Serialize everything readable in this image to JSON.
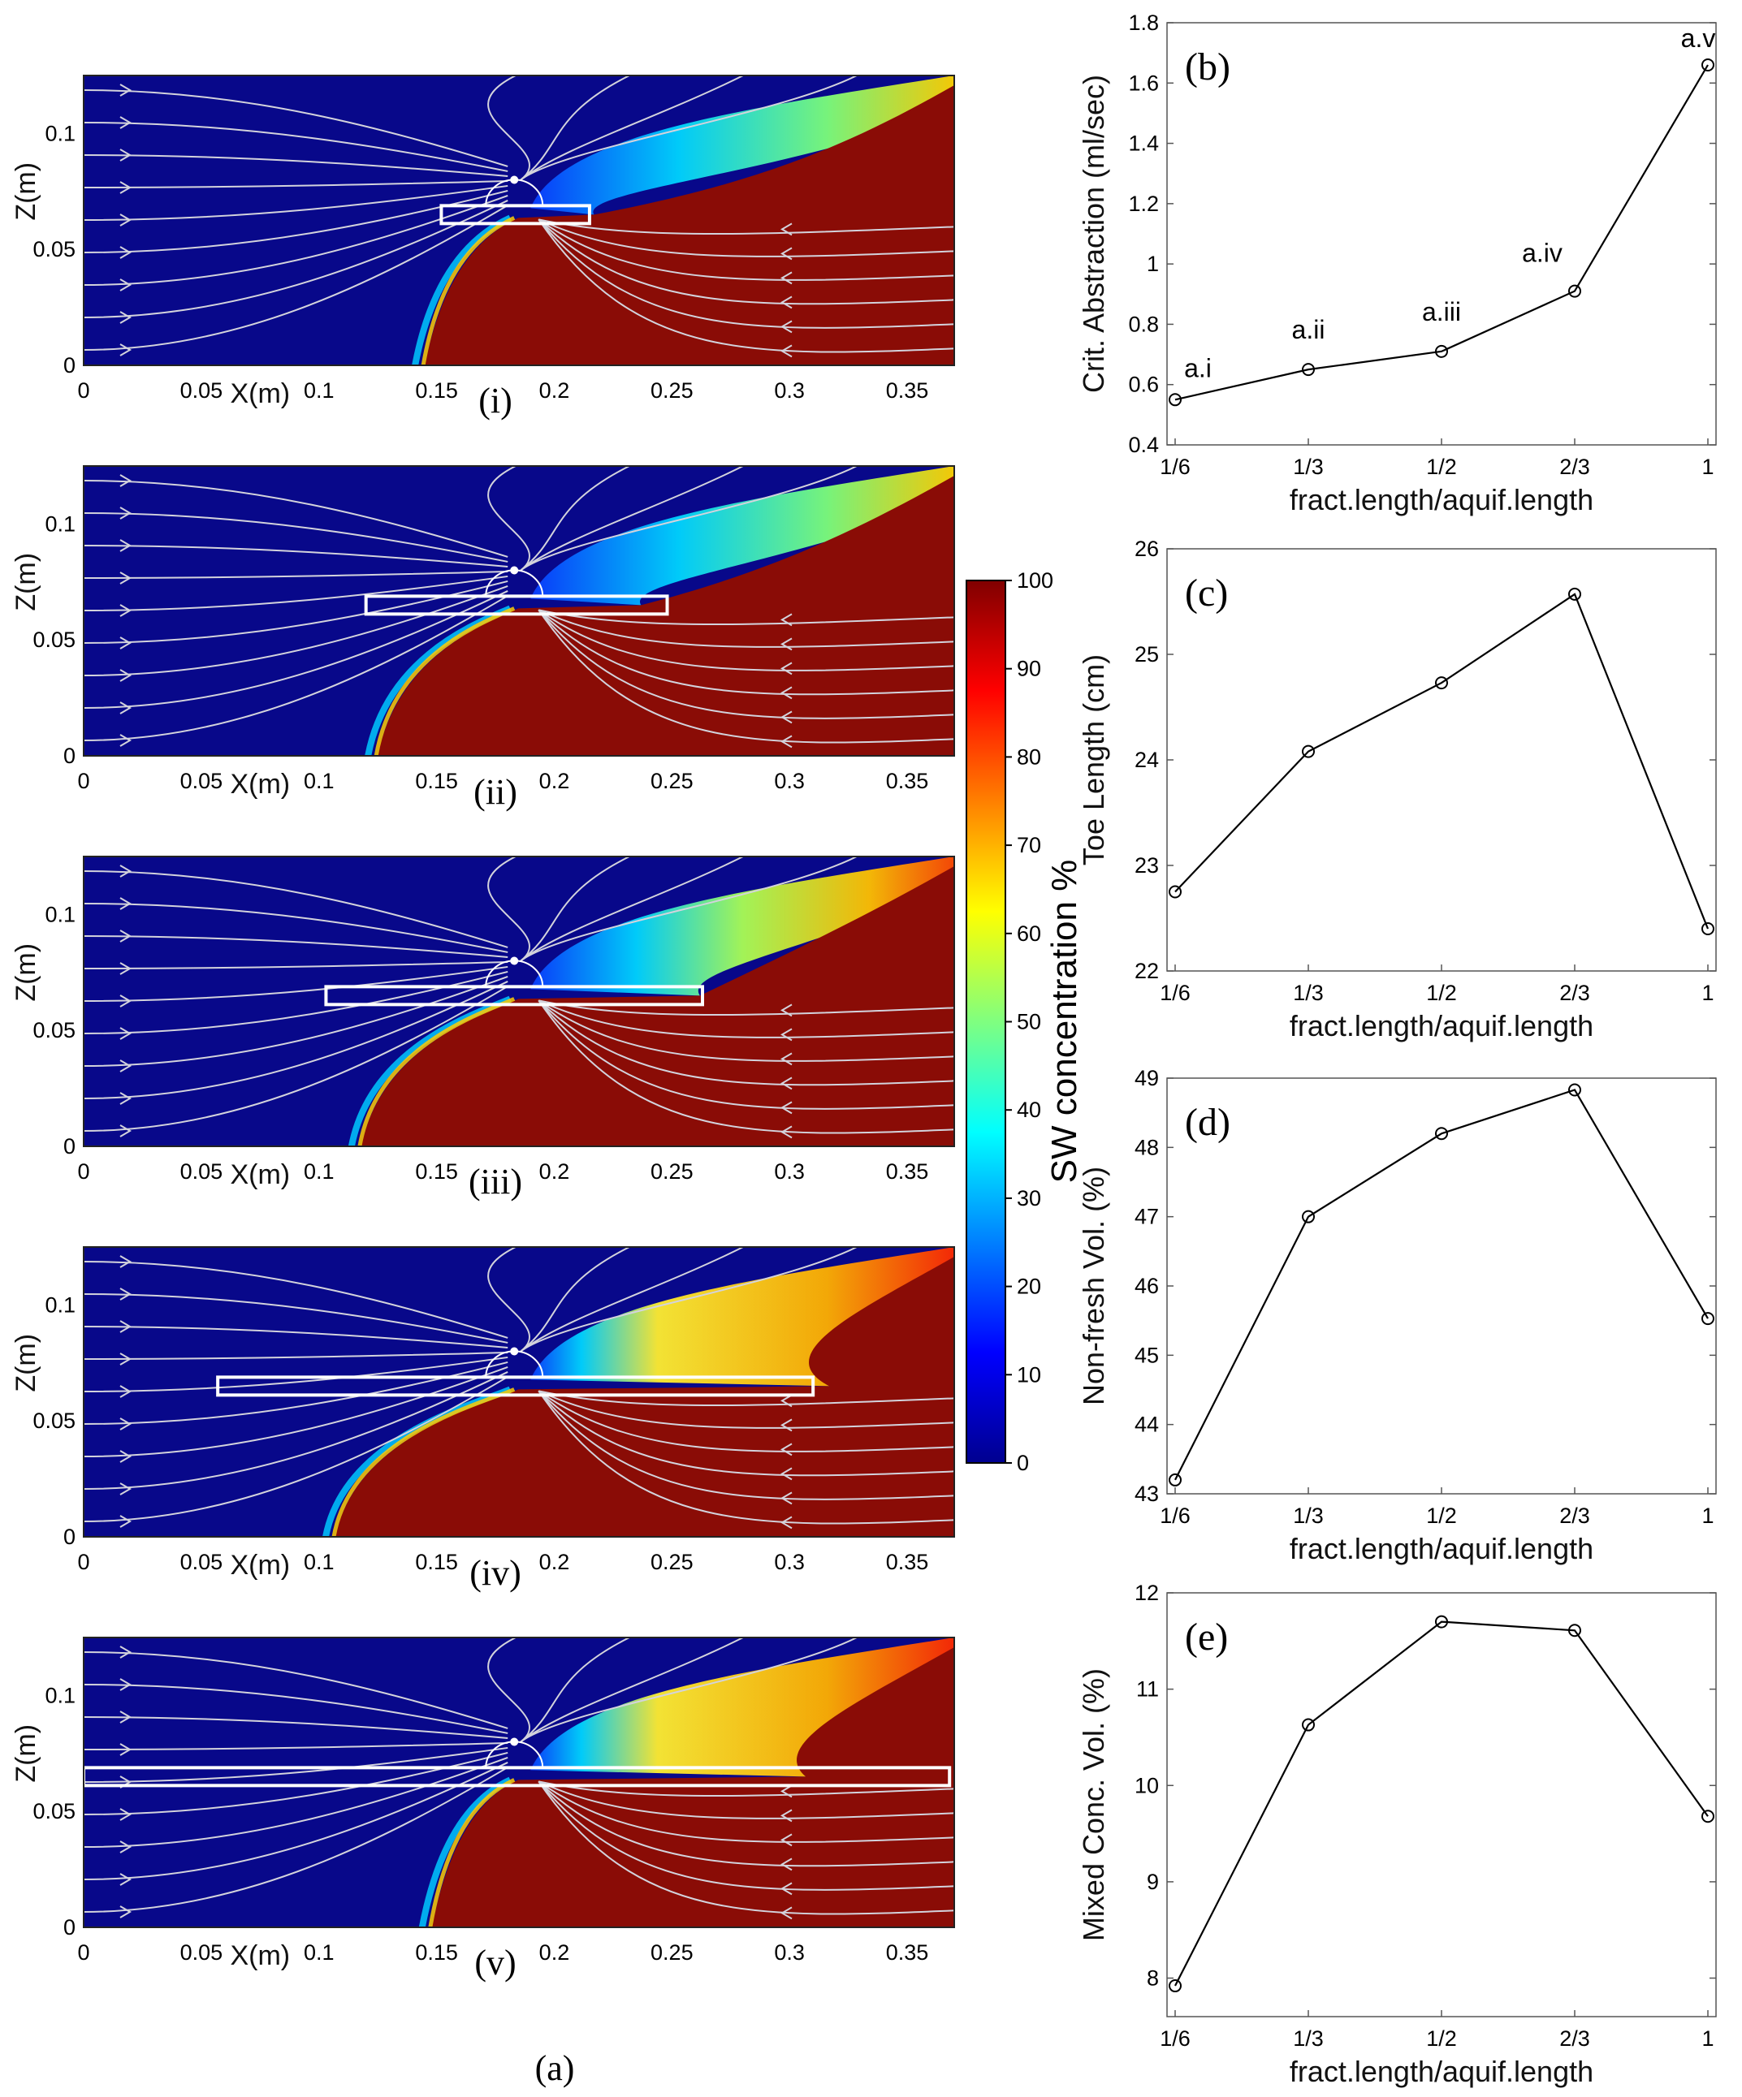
{
  "caption": "(a)",
  "chart_data": [
    {
      "type": "heatmap",
      "panel": "(i)",
      "xlabel": "X(m)",
      "ylabel": "Z(m)",
      "xlim": [
        0,
        0.37
      ],
      "ylim": [
        0,
        0.125
      ],
      "xticks": [
        "0",
        "0.05",
        "0.1",
        "0.15",
        "0.2",
        "0.25",
        "0.3",
        "0.35"
      ],
      "yticks": [
        "0",
        "0.05",
        "0.1"
      ],
      "fracture": {
        "x_start": 0.152,
        "x_end": 0.215,
        "z": 0.065
      },
      "well": {
        "x": 0.183,
        "z": 0.08
      },
      "toe_x": 0.145,
      "mixing_tip_x": 0.21
    },
    {
      "type": "heatmap",
      "panel": "(ii)",
      "xlabel": "X(m)",
      "ylabel": "Z(m)",
      "xlim": [
        0,
        0.37
      ],
      "ylim": [
        0,
        0.125
      ],
      "xticks": [
        "0",
        "0.05",
        "0.1",
        "0.15",
        "0.2",
        "0.25",
        "0.3",
        "0.35"
      ],
      "yticks": [
        "0",
        "0.05",
        "0.1"
      ],
      "fracture": {
        "x_start": 0.12,
        "x_end": 0.248,
        "z": 0.065
      },
      "well": {
        "x": 0.183,
        "z": 0.08
      },
      "toe_x": 0.125,
      "mixing_tip_x": 0.23
    },
    {
      "type": "heatmap",
      "panel": "(iii)",
      "xlabel": "X(m)",
      "ylabel": "Z(m)",
      "xlim": [
        0,
        0.37
      ],
      "ylim": [
        0,
        0.125
      ],
      "xticks": [
        "0",
        "0.05",
        "0.1",
        "0.15",
        "0.2",
        "0.25",
        "0.3",
        "0.35"
      ],
      "yticks": [
        "0",
        "0.05",
        "0.1"
      ],
      "fracture": {
        "x_start": 0.103,
        "x_end": 0.263,
        "z": 0.065
      },
      "well": {
        "x": 0.183,
        "z": 0.08
      },
      "toe_x": 0.118,
      "mixing_tip_x": 0.255
    },
    {
      "type": "heatmap",
      "panel": "(iv)",
      "xlabel": "X(m)",
      "ylabel": "Z(m)",
      "xlim": [
        0,
        0.37
      ],
      "ylim": [
        0,
        0.125
      ],
      "xticks": [
        "0",
        "0.05",
        "0.1",
        "0.15",
        "0.2",
        "0.25",
        "0.3",
        "0.35"
      ],
      "yticks": [
        "0",
        "0.05",
        "0.1"
      ],
      "fracture": {
        "x_start": 0.057,
        "x_end": 0.31,
        "z": 0.065
      },
      "well": {
        "x": 0.183,
        "z": 0.08
      },
      "toe_x": 0.107,
      "mixing_tip_x": 0.31
    },
    {
      "type": "heatmap",
      "panel": "(v)",
      "xlabel": "X(m)",
      "ylabel": "Z(m)",
      "xlim": [
        0,
        0.37
      ],
      "ylim": [
        0,
        0.125
      ],
      "xticks": [
        "0",
        "0.05",
        "0.1",
        "0.15",
        "0.2",
        "0.25",
        "0.3",
        "0.35"
      ],
      "yticks": [
        "0",
        "0.05",
        "0.1"
      ],
      "fracture": {
        "x_start": 0.0,
        "x_end": 0.368,
        "z": 0.065
      },
      "well": {
        "x": 0.183,
        "z": 0.08
      },
      "toe_x": 0.148,
      "mixing_tip_x": 0.3
    },
    {
      "type": "colorbar",
      "label": "SW concentration %",
      "range": [
        0,
        100
      ],
      "ticks": [
        "0",
        "10",
        "20",
        "30",
        "40",
        "50",
        "60",
        "70",
        "80",
        "90",
        "100"
      ]
    },
    {
      "type": "line",
      "panel": "(b)",
      "xlabel": "fract.length/aquif.length",
      "ylabel": "Crit. Abstraction (ml/sec)",
      "categories": [
        "1/6",
        "1/3",
        "1/2",
        "2/3",
        "1"
      ],
      "values": [
        0.55,
        0.65,
        0.71,
        0.91,
        1.66
      ],
      "point_labels": [
        "a.i",
        "a.ii",
        "a.iii",
        "a.iv",
        "a.v"
      ],
      "ylim": [
        0.4,
        1.8
      ],
      "yticks": [
        "0.4",
        "0.6",
        "0.8",
        "1",
        "1.2",
        "1.4",
        "1.6",
        "1.8"
      ]
    },
    {
      "type": "line",
      "panel": "(c)",
      "xlabel": "fract.length/aquif.length",
      "ylabel": "Toe Length (cm)",
      "categories": [
        "1/6",
        "1/3",
        "1/2",
        "2/3",
        "1"
      ],
      "values": [
        22.75,
        24.08,
        24.73,
        25.57,
        22.4
      ],
      "ylim": [
        22,
        26
      ],
      "yticks": [
        "22",
        "23",
        "24",
        "25",
        "26"
      ]
    },
    {
      "type": "line",
      "panel": "(d)",
      "xlabel": "fract.length/aquif.length",
      "ylabel": "Non-fresh Vol. (%)",
      "categories": [
        "1/6",
        "1/3",
        "1/2",
        "2/3",
        "1"
      ],
      "values": [
        43.2,
        47.0,
        48.2,
        48.83,
        45.53
      ],
      "ylim": [
        43,
        49
      ],
      "yticks": [
        "43",
        "44",
        "45",
        "46",
        "47",
        "48",
        "49"
      ]
    },
    {
      "type": "line",
      "panel": "(e)",
      "xlabel": "fract.length/aquif.length",
      "ylabel": "Mixed Conc. Vol. (%)",
      "categories": [
        "1/6",
        "1/3",
        "1/2",
        "2/3",
        "1"
      ],
      "values": [
        7.92,
        10.63,
        11.7,
        11.61,
        9.68
      ],
      "ylim": [
        7.6,
        12
      ],
      "yticks": [
        "8",
        "9",
        "10",
        "11",
        "12"
      ]
    }
  ],
  "colors": {
    "fresh": "#08088a",
    "salt": "#8a0c06",
    "streamline": "#d3d3dc",
    "frame": "#000000"
  }
}
